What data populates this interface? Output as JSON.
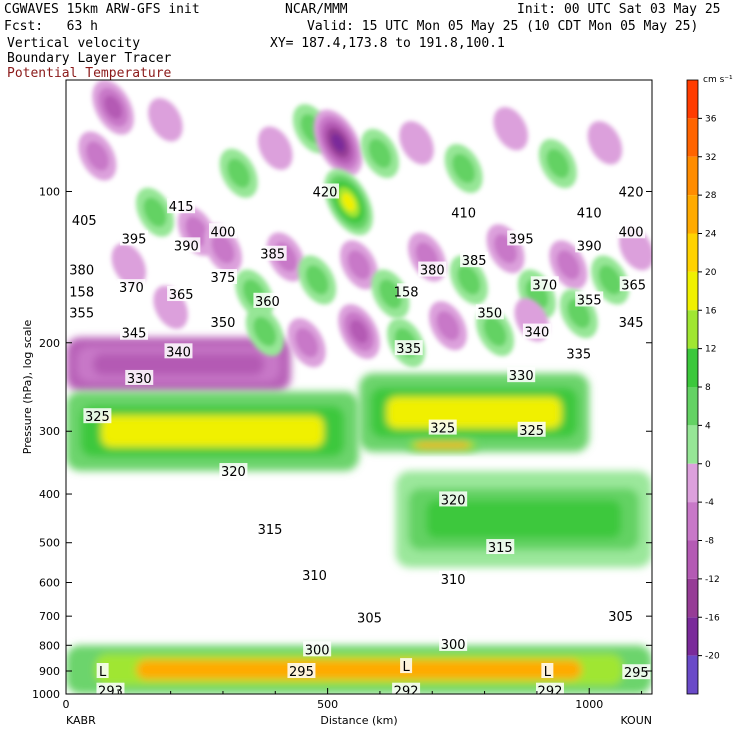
{
  "header": {
    "model": "CGWAVES 15km ARW-GFS init",
    "center": "NCAR/MMM",
    "init": "Init: 00 UTC Sat 03 May 25",
    "fcst": "Fcst:   63 h",
    "valid": "Valid: 15 UTC Mon 05 May 25 (10 CDT Mon 05 May 25)",
    "field1": "Vertical velocity",
    "field2": "Boundary Layer Tracer",
    "field3": "Potential Temperature",
    "xy": "XY= 187.4,173.8 to 191.8,100.1"
  },
  "colors": {
    "theta_contour": "#7a0000",
    "positive_ramp": [
      "#ffffff",
      "#c8f0c8",
      "#96e696",
      "#64d264",
      "#3cc83c",
      "#a0e632",
      "#f0f000",
      "#ffd200",
      "#ffaa00",
      "#ff8c00",
      "#ff6400",
      "#ff3c00",
      "#ff1400",
      "#e60000"
    ],
    "negative_ramp": [
      "#ffffff",
      "#ecc8ec",
      "#dca0dc",
      "#c878c8",
      "#b45ab4",
      "#963c96",
      "#7a2a9a",
      "#6a4ac8",
      "#8080f0"
    ]
  },
  "chart_data": {
    "type": "heatmap",
    "xlabel": "Distance (km)",
    "ylabel": "Pressure (hPa), log scale",
    "x_ticks": [
      0,
      500,
      1000
    ],
    "xlim": [
      0,
      1120
    ],
    "y_ticks": [
      100,
      200,
      300,
      400,
      500,
      600,
      700,
      800,
      900,
      1000
    ],
    "ylim": [
      1000,
      60
    ],
    "y_scale": "log",
    "endpoint_left": "KABR",
    "endpoint_right": "KOUN",
    "colorbar": {
      "units": "cm s⁻¹",
      "ticks": [
        36,
        32,
        28,
        24,
        20,
        16,
        12,
        8,
        4,
        0,
        -4,
        -8,
        -12,
        -16,
        -20
      ]
    },
    "theta_contours": [
      {
        "value": 420,
        "pressure": 100
      },
      {
        "value": 415,
        "pressure": 105
      },
      {
        "value": 410,
        "pressure": 110
      },
      {
        "value": 405,
        "pressure": 115
      },
      {
        "value": 400,
        "pressure": 120
      },
      {
        "value": 395,
        "pressure": 126
      },
      {
        "value": 390,
        "pressure": 132
      },
      {
        "value": 385,
        "pressure": 138
      },
      {
        "value": 380,
        "pressure": 145
      },
      {
        "value": 375,
        "pressure": 150
      },
      {
        "value": 370,
        "pressure": 156
      },
      {
        "value": 365,
        "pressure": 162
      },
      {
        "value": 360,
        "pressure": 168
      },
      {
        "value": 355,
        "pressure": 176
      },
      {
        "value": 350,
        "pressure": 185
      },
      {
        "value": 345,
        "pressure": 196
      },
      {
        "value": 340,
        "pressure": 210
      },
      {
        "value": 335,
        "pressure": 225
      },
      {
        "value": 330,
        "pressure": 250
      },
      {
        "value": 325,
        "pressure": 300
      },
      {
        "value": 320,
        "pressure": 390
      },
      {
        "value": 315,
        "pressure": 500
      },
      {
        "value": 310,
        "pressure": 610
      },
      {
        "value": 305,
        "pressure": 720
      },
      {
        "value": 300,
        "pressure": 820
      },
      {
        "value": 295,
        "pressure": 900
      },
      {
        "value": 293,
        "pressure": 990
      },
      {
        "value": 292,
        "pressure": 990
      }
    ],
    "theta_labels": [
      {
        "text": "420",
        "x": 495,
        "p": 100
      },
      {
        "text": "410",
        "x": 760,
        "p": 110
      },
      {
        "text": "410",
        "x": 1000,
        "p": 110
      },
      {
        "text": "420",
        "x": 1080,
        "p": 100
      },
      {
        "text": "415",
        "x": 220,
        "p": 107
      },
      {
        "text": "405",
        "x": 35,
        "p": 114
      },
      {
        "text": "400",
        "x": 300,
        "p": 120
      },
      {
        "text": "400",
        "x": 1080,
        "p": 120
      },
      {
        "text": "395",
        "x": 130,
        "p": 124
      },
      {
        "text": "395",
        "x": 870,
        "p": 124
      },
      {
        "text": "390",
        "x": 230,
        "p": 128
      },
      {
        "text": "390",
        "x": 1000,
        "p": 128
      },
      {
        "text": "385",
        "x": 395,
        "p": 133
      },
      {
        "text": "385",
        "x": 780,
        "p": 137
      },
      {
        "text": "380",
        "x": 30,
        "p": 143
      },
      {
        "text": "380",
        "x": 700,
        "p": 143
      },
      {
        "text": "375",
        "x": 300,
        "p": 148
      },
      {
        "text": "370",
        "x": 125,
        "p": 155
      },
      {
        "text": "370",
        "x": 915,
        "p": 153
      },
      {
        "text": "365",
        "x": 220,
        "p": 160
      },
      {
        "text": "365",
        "x": 1085,
        "p": 153
      },
      {
        "text": "360",
        "x": 385,
        "p": 165
      },
      {
        "text": "355",
        "x": 30,
        "p": 174
      },
      {
        "text": "355",
        "x": 1000,
        "p": 164
      },
      {
        "text": "350",
        "x": 300,
        "p": 182
      },
      {
        "text": "350",
        "x": 810,
        "p": 174
      },
      {
        "text": "345",
        "x": 130,
        "p": 191
      },
      {
        "text": "345",
        "x": 1080,
        "p": 182
      },
      {
        "text": "340",
        "x": 215,
        "p": 208
      },
      {
        "text": "340",
        "x": 900,
        "p": 190
      },
      {
        "text": "335",
        "x": 655,
        "p": 205
      },
      {
        "text": "335",
        "x": 980,
        "p": 210
      },
      {
        "text": "330",
        "x": 140,
        "p": 235
      },
      {
        "text": "330",
        "x": 870,
        "p": 232
      },
      {
        "text": "325",
        "x": 60,
        "p": 280
      },
      {
        "text": "325",
        "x": 720,
        "p": 295
      },
      {
        "text": "325",
        "x": 890,
        "p": 298
      },
      {
        "text": "320",
        "x": 320,
        "p": 360
      },
      {
        "text": "320",
        "x": 740,
        "p": 410
      },
      {
        "text": "315",
        "x": 390,
        "p": 470
      },
      {
        "text": "315",
        "x": 830,
        "p": 510
      },
      {
        "text": "310",
        "x": 475,
        "p": 580
      },
      {
        "text": "310",
        "x": 740,
        "p": 590
      },
      {
        "text": "305",
        "x": 580,
        "p": 705
      },
      {
        "text": "305",
        "x": 1060,
        "p": 700
      },
      {
        "text": "300",
        "x": 480,
        "p": 815
      },
      {
        "text": "300",
        "x": 740,
        "p": 795
      },
      {
        "text": "295",
        "x": 450,
        "p": 900
      },
      {
        "text": "295",
        "x": 1090,
        "p": 905
      },
      {
        "text": "293",
        "x": 85,
        "p": 985
      },
      {
        "text": "292",
        "x": 650,
        "p": 985
      },
      {
        "text": "292",
        "x": 925,
        "p": 985
      },
      {
        "text": "158",
        "x": 30,
        "p": 158
      },
      {
        "text": "158",
        "x": 650,
        "p": 158
      }
    ],
    "bl_markers": [
      {
        "text": "L",
        "x": 70,
        "p": 900
      },
      {
        "text": "L",
        "x": 650,
        "p": 880
      },
      {
        "text": "L",
        "x": 920,
        "p": 900
      }
    ],
    "wave_cells": [
      {
        "x": 90,
        "p": 68,
        "v": -12
      },
      {
        "x": 190,
        "p": 72,
        "v": -4
      },
      {
        "x": 60,
        "p": 85,
        "v": -8
      },
      {
        "x": 170,
        "p": 110,
        "v": 8
      },
      {
        "x": 250,
        "p": 120,
        "v": -8
      },
      {
        "x": 330,
        "p": 92,
        "v": 8
      },
      {
        "x": 400,
        "p": 82,
        "v": -4
      },
      {
        "x": 470,
        "p": 75,
        "v": 8
      },
      {
        "x": 520,
        "p": 80,
        "v": -20
      },
      {
        "x": 540,
        "p": 105,
        "v": 20
      },
      {
        "x": 600,
        "p": 84,
        "v": 8
      },
      {
        "x": 670,
        "p": 80,
        "v": -4
      },
      {
        "x": 760,
        "p": 90,
        "v": 8
      },
      {
        "x": 850,
        "p": 75,
        "v": -4
      },
      {
        "x": 940,
        "p": 88,
        "v": 8
      },
      {
        "x": 1030,
        "p": 80,
        "v": -4
      },
      {
        "x": 300,
        "p": 130,
        "v": -8
      },
      {
        "x": 360,
        "p": 160,
        "v": 8
      },
      {
        "x": 420,
        "p": 135,
        "v": -8
      },
      {
        "x": 480,
        "p": 150,
        "v": 8
      },
      {
        "x": 560,
        "p": 140,
        "v": -8
      },
      {
        "x": 620,
        "p": 160,
        "v": 8
      },
      {
        "x": 690,
        "p": 135,
        "v": -8
      },
      {
        "x": 770,
        "p": 150,
        "v": 8
      },
      {
        "x": 840,
        "p": 130,
        "v": -8
      },
      {
        "x": 900,
        "p": 160,
        "v": 8
      },
      {
        "x": 960,
        "p": 140,
        "v": -8
      },
      {
        "x": 1040,
        "p": 150,
        "v": 8
      },
      {
        "x": 1090,
        "p": 130,
        "v": -4
      },
      {
        "x": 200,
        "p": 170,
        "v": -4
      },
      {
        "x": 120,
        "p": 140,
        "v": -4
      },
      {
        "x": 380,
        "p": 190,
        "v": 8
      },
      {
        "x": 460,
        "p": 200,
        "v": -8
      },
      {
        "x": 560,
        "p": 190,
        "v": -12
      },
      {
        "x": 650,
        "p": 200,
        "v": 8
      },
      {
        "x": 730,
        "p": 185,
        "v": -8
      },
      {
        "x": 820,
        "p": 190,
        "v": 8
      },
      {
        "x": 890,
        "p": 180,
        "v": -4
      },
      {
        "x": 980,
        "p": 175,
        "v": 8
      }
    ],
    "jet_regions": [
      {
        "name": "upper-left stable",
        "x0": 0,
        "x1": 430,
        "p0": 195,
        "p1": 250,
        "v": -12
      },
      {
        "name": "left warm layer",
        "x0": 0,
        "x1": 560,
        "p0": 250,
        "p1": 360,
        "v": 20
      },
      {
        "name": "right warm layer",
        "x0": 560,
        "x1": 1000,
        "p0": 230,
        "p1": 330,
        "v": 20
      },
      {
        "name": "right warm core",
        "x0": 650,
        "x1": 790,
        "p0": 310,
        "p1": 330,
        "v": 28
      },
      {
        "name": "midlevel descending",
        "x0": 630,
        "x1": 1120,
        "p0": 360,
        "p1": 560,
        "v": 12
      },
      {
        "name": "surface boundary layer",
        "x0": 0,
        "x1": 1120,
        "p0": 800,
        "p1": 1000,
        "v": 28
      }
    ]
  }
}
